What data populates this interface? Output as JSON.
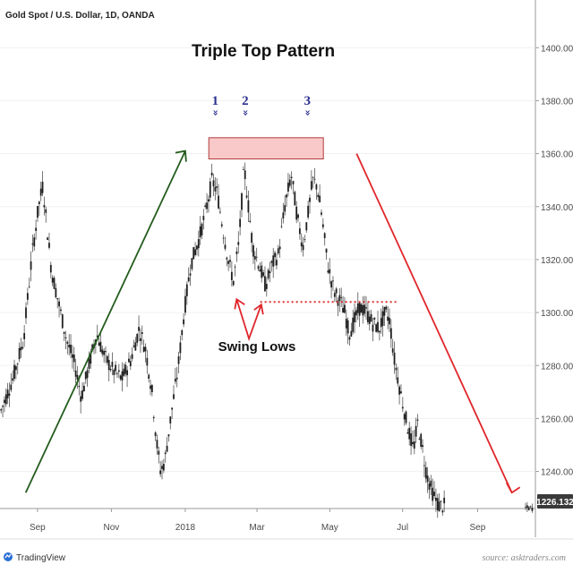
{
  "header": {
    "instrument": "Gold Spot / U.S. Dollar, 1D, OANDA"
  },
  "footer": {
    "brand": "TradingView",
    "source": "source: asktraders.com"
  },
  "colors": {
    "candle_body": "#1f1f1f",
    "wick": "#555555",
    "zone_fill": "#f9c9c9",
    "zone_stroke": "#b23b3b",
    "uptrend": "#245c1e",
    "downtrend": "#e0262b",
    "neckline": "#e03030",
    "swing_arrow": "#e0262b",
    "badge": "#3a3a3a"
  },
  "chart_data": {
    "type": "candlestick",
    "title": "Triple Top Pattern",
    "ylim": [
      1226,
      1418
    ],
    "xlim": [
      0,
      500
    ],
    "y_ticks": [
      1240,
      1260,
      1280,
      1300,
      1320,
      1340,
      1360,
      1380,
      1400
    ],
    "y_tick_labels": [
      "1240.000",
      "1260.000",
      "1280.000",
      "1300.000",
      "1320.000",
      "1340.000",
      "1360.000",
      "1380.000",
      "1400.000"
    ],
    "x_ticks": [
      {
        "pos": 35,
        "label": "Sep"
      },
      {
        "pos": 104,
        "label": "Nov"
      },
      {
        "pos": 173,
        "label": "2018"
      },
      {
        "pos": 240,
        "label": "Mar"
      },
      {
        "pos": 308,
        "label": "May"
      },
      {
        "pos": 376,
        "label": "Jul"
      },
      {
        "pos": 446,
        "label": "Sep"
      }
    ],
    "last_price": 1226.132,
    "last_price_label": "1226.132",
    "price_path": [
      [
        0,
        1262
      ],
      [
        12,
        1275
      ],
      [
        22,
        1290
      ],
      [
        30,
        1322
      ],
      [
        36,
        1340
      ],
      [
        40,
        1348
      ],
      [
        44,
        1332
      ],
      [
        48,
        1316
      ],
      [
        54,
        1305
      ],
      [
        62,
        1290
      ],
      [
        70,
        1280
      ],
      [
        76,
        1268
      ],
      [
        82,
        1278
      ],
      [
        90,
        1292
      ],
      [
        98,
        1283
      ],
      [
        106,
        1278
      ],
      [
        114,
        1275
      ],
      [
        122,
        1282
      ],
      [
        130,
        1294
      ],
      [
        136,
        1286
      ],
      [
        142,
        1270
      ],
      [
        146,
        1252
      ],
      [
        150,
        1240
      ],
      [
        154,
        1244
      ],
      [
        160,
        1262
      ],
      [
        166,
        1278
      ],
      [
        172,
        1300
      ],
      [
        178,
        1318
      ],
      [
        186,
        1328
      ],
      [
        192,
        1338
      ],
      [
        198,
        1350
      ],
      [
        203,
        1345
      ],
      [
        208,
        1332
      ],
      [
        213,
        1320
      ],
      [
        218,
        1312
      ],
      [
        223,
        1326
      ],
      [
        228,
        1355
      ],
      [
        232,
        1340
      ],
      [
        236,
        1325
      ],
      [
        242,
        1318
      ],
      [
        248,
        1310
      ],
      [
        254,
        1318
      ],
      [
        260,
        1322
      ],
      [
        266,
        1340
      ],
      [
        272,
        1352
      ],
      [
        278,
        1335
      ],
      [
        283,
        1325
      ],
      [
        288,
        1338
      ],
      [
        292,
        1350
      ],
      [
        296,
        1348
      ],
      [
        300,
        1338
      ],
      [
        306,
        1318
      ],
      [
        312,
        1308
      ],
      [
        318,
        1304
      ],
      [
        322,
        1300
      ],
      [
        326,
        1292
      ],
      [
        330,
        1296
      ],
      [
        336,
        1302
      ],
      [
        342,
        1300
      ],
      [
        348,
        1296
      ],
      [
        354,
        1294
      ],
      [
        360,
        1300
      ],
      [
        364,
        1297
      ],
      [
        368,
        1283
      ],
      [
        374,
        1270
      ],
      [
        380,
        1258
      ],
      [
        386,
        1248
      ],
      [
        390,
        1258
      ],
      [
        394,
        1250
      ],
      [
        398,
        1240
      ],
      [
        402,
        1234
      ],
      [
        406,
        1230
      ],
      [
        410,
        1227
      ],
      [
        414,
        1227
      ],
      [
        496,
        1226.132
      ]
    ],
    "annotations": {
      "resistance_zone": {
        "x0": 195,
        "x1": 302,
        "y0": 1358,
        "y1": 1366
      },
      "peaks": [
        {
          "label": "1",
          "x": 201,
          "y_top": 1371
        },
        {
          "label": "2",
          "x": 229,
          "y_top": 1371
        },
        {
          "label": "3",
          "x": 287,
          "y_top": 1371
        }
      ],
      "neckline": {
        "x0": 243,
        "x1": 370,
        "y": 1304
      },
      "swing_lows_label": "Swing Lows",
      "swing_lows_points": [
        {
          "x": 221,
          "y": 1305
        },
        {
          "x": 244,
          "y": 1303
        }
      ],
      "uptrend_arrow": {
        "x0": 24,
        "y0": 1232,
        "x1": 173,
        "y1": 1361
      },
      "downtrend_arrow": {
        "x0": 333,
        "y0": 1360,
        "x1": 478,
        "y1": 1232
      }
    }
  }
}
